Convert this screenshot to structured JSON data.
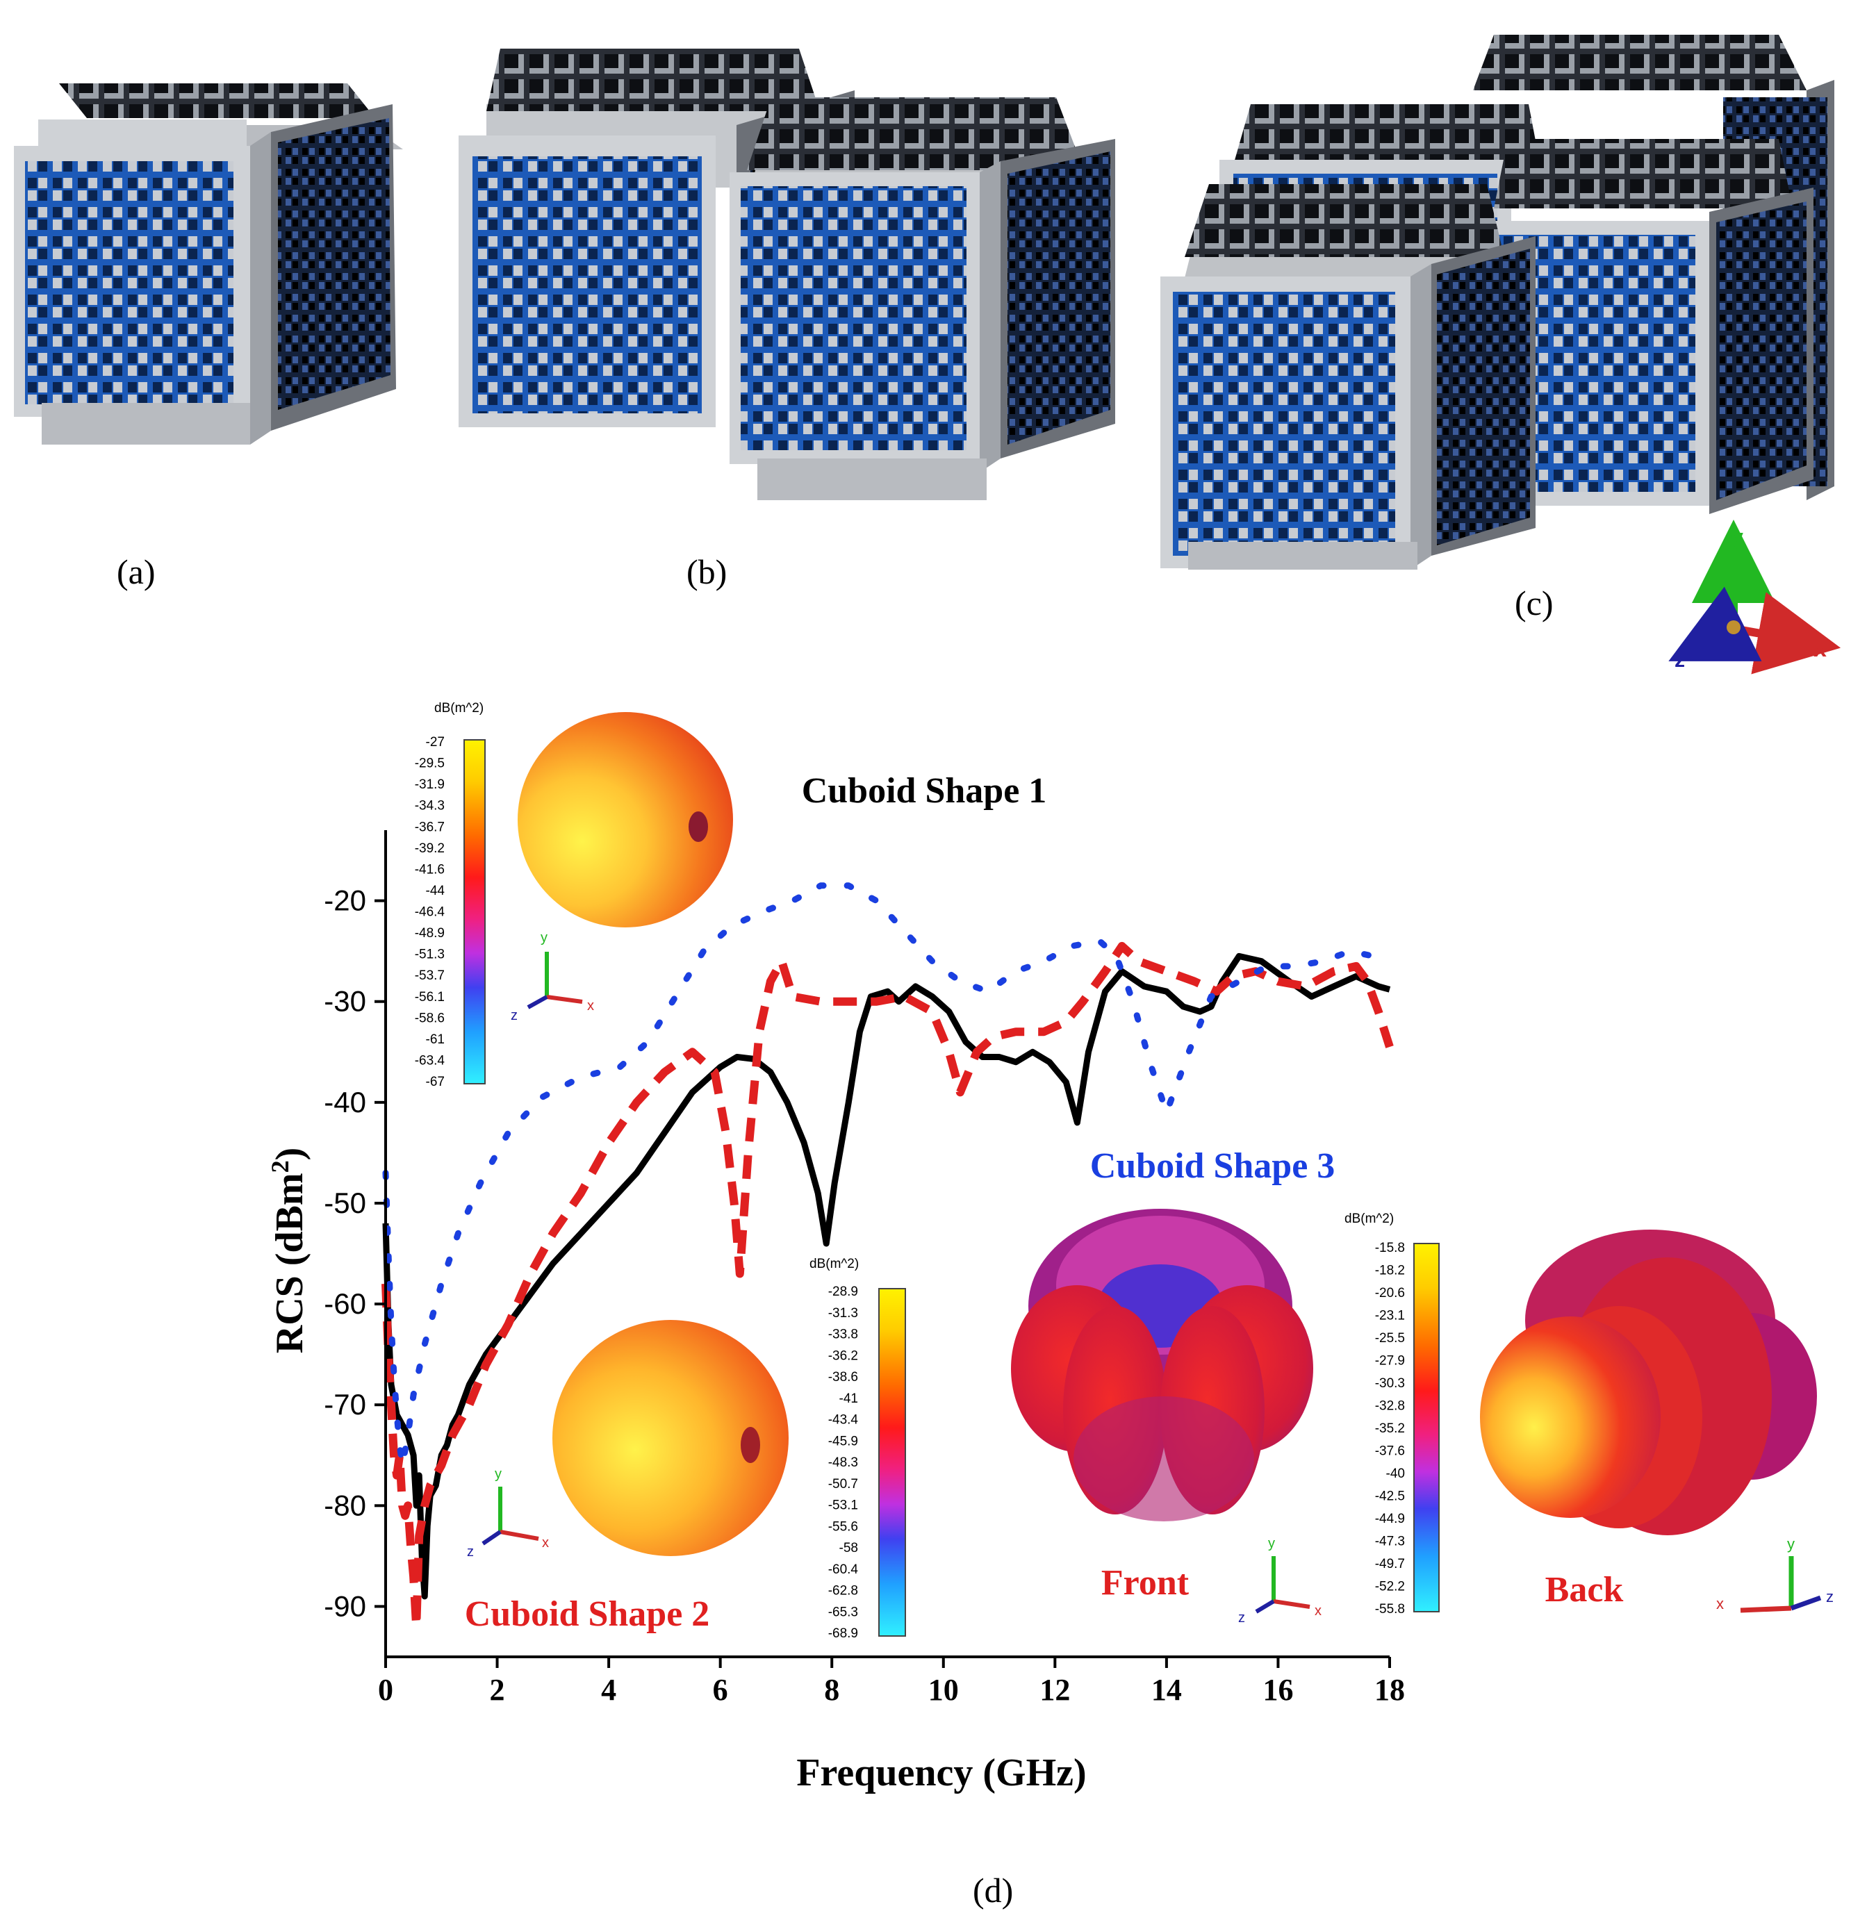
{
  "panels": {
    "a": "(a)",
    "b": "(b)",
    "c": "(c)",
    "d": "(d)"
  },
  "axes_triad": {
    "x": "x",
    "y": "y",
    "z": "z"
  },
  "colorbar_unit_1": "dB(m^2)",
  "colorbar_unit_2": "dB(m^2)",
  "colorbar_unit_3": "dB(m^2)",
  "colorbar1_ticks": [
    "-27",
    "-29.5",
    "-31.9",
    "-34.3",
    "-36.7",
    "-39.2",
    "-41.6",
    "-44",
    "-46.4",
    "-48.9",
    "-51.3",
    "-53.7",
    "-56.1",
    "-58.6",
    "-61",
    "-63.4",
    "-67"
  ],
  "colorbar2_ticks": [
    "-28.9",
    "-31.3",
    "-33.8",
    "-36.2",
    "-38.6",
    "-41",
    "-43.4",
    "-45.9",
    "-48.3",
    "-50.7",
    "-53.1",
    "-55.6",
    "-58",
    "-60.4",
    "-62.8",
    "-65.3",
    "-68.9"
  ],
  "colorbar3_ticks": [
    "-15.8",
    "-18.2",
    "-20.6",
    "-23.1",
    "-25.5",
    "-27.9",
    "-30.3",
    "-32.8",
    "-35.2",
    "-37.6",
    "-40",
    "-42.5",
    "-44.9",
    "-47.3",
    "-49.7",
    "-52.2",
    "-55.8"
  ],
  "labels": {
    "shape1": "Cuboid Shape 1",
    "shape2": "Cuboid Shape 2",
    "shape3": "Cuboid Shape 3",
    "front": "Front",
    "back": "Back"
  },
  "chart_data": {
    "type": "line",
    "xlabel": "Frequency (GHz)",
    "ylabel_main": "RCS (dBm",
    "ylabel_sup": "2",
    "ylabel_end": ")",
    "xlim": [
      0,
      18
    ],
    "ylim": [
      -95,
      -13
    ],
    "xticks": [
      0,
      2,
      4,
      6,
      8,
      10,
      12,
      14,
      16,
      18
    ],
    "yticks": [
      -20,
      -30,
      -40,
      -50,
      -60,
      -70,
      -80,
      -90
    ],
    "series": [
      {
        "name": "Cuboid Shape 1",
        "color": "#000000",
        "style": "solid",
        "points": [
          [
            0,
            -52
          ],
          [
            0.05,
            -62
          ],
          [
            0.1,
            -68
          ],
          [
            0.2,
            -71
          ],
          [
            0.3,
            -72
          ],
          [
            0.4,
            -73
          ],
          [
            0.5,
            -75
          ],
          [
            0.55,
            -80
          ],
          [
            0.6,
            -77
          ],
          [
            0.65,
            -85
          ],
          [
            0.7,
            -89
          ],
          [
            0.75,
            -82
          ],
          [
            0.8,
            -79
          ],
          [
            0.9,
            -78
          ],
          [
            1.0,
            -75
          ],
          [
            1.1,
            -74
          ],
          [
            1.2,
            -72
          ],
          [
            1.3,
            -71
          ],
          [
            1.5,
            -68
          ],
          [
            1.8,
            -65
          ],
          [
            2.2,
            -62
          ],
          [
            2.6,
            -59
          ],
          [
            3.0,
            -56
          ],
          [
            3.5,
            -53
          ],
          [
            4.0,
            -50
          ],
          [
            4.5,
            -47
          ],
          [
            5.0,
            -43
          ],
          [
            5.5,
            -39
          ],
          [
            6.0,
            -36.5
          ],
          [
            6.3,
            -35.5
          ],
          [
            6.6,
            -35.7
          ],
          [
            6.9,
            -37
          ],
          [
            7.2,
            -40
          ],
          [
            7.5,
            -44
          ],
          [
            7.75,
            -49
          ],
          [
            7.9,
            -54
          ],
          [
            8.05,
            -48
          ],
          [
            8.3,
            -40
          ],
          [
            8.5,
            -33
          ],
          [
            8.7,
            -29.5
          ],
          [
            9.0,
            -29
          ],
          [
            9.2,
            -30
          ],
          [
            9.5,
            -28.5
          ],
          [
            9.8,
            -29.5
          ],
          [
            10.1,
            -31
          ],
          [
            10.4,
            -34
          ],
          [
            10.7,
            -35.5
          ],
          [
            11.0,
            -35.5
          ],
          [
            11.3,
            -36
          ],
          [
            11.6,
            -35
          ],
          [
            11.9,
            -36
          ],
          [
            12.2,
            -38
          ],
          [
            12.4,
            -42
          ],
          [
            12.6,
            -35
          ],
          [
            12.9,
            -29
          ],
          [
            13.2,
            -27
          ],
          [
            13.6,
            -28.5
          ],
          [
            14.0,
            -29
          ],
          [
            14.3,
            -30.5
          ],
          [
            14.6,
            -31
          ],
          [
            14.8,
            -30.5
          ],
          [
            15.0,
            -28
          ],
          [
            15.3,
            -25.5
          ],
          [
            15.7,
            -26
          ],
          [
            16.2,
            -28
          ],
          [
            16.6,
            -29.5
          ],
          [
            17.0,
            -28.5
          ],
          [
            17.4,
            -27.5
          ],
          [
            17.8,
            -28.5
          ],
          [
            18,
            -28.8
          ]
        ]
      },
      {
        "name": "Cuboid Shape 2",
        "color": "#e02020",
        "style": "dashed",
        "points": [
          [
            0,
            -58
          ],
          [
            0.05,
            -65
          ],
          [
            0.1,
            -70
          ],
          [
            0.15,
            -75
          ],
          [
            0.2,
            -77
          ],
          [
            0.25,
            -75
          ],
          [
            0.3,
            -80
          ],
          [
            0.35,
            -81
          ],
          [
            0.4,
            -80
          ],
          [
            0.45,
            -84
          ],
          [
            0.5,
            -87
          ],
          [
            0.55,
            -92
          ],
          [
            0.6,
            -83
          ],
          [
            0.7,
            -80
          ],
          [
            0.8,
            -78
          ],
          [
            1.0,
            -76
          ],
          [
            1.2,
            -73
          ],
          [
            1.5,
            -70
          ],
          [
            1.8,
            -66
          ],
          [
            2.2,
            -62
          ],
          [
            2.6,
            -57
          ],
          [
            3.0,
            -53
          ],
          [
            3.5,
            -49
          ],
          [
            4.0,
            -44
          ],
          [
            4.5,
            -40
          ],
          [
            5.0,
            -37
          ],
          [
            5.5,
            -35
          ],
          [
            5.9,
            -37
          ],
          [
            6.1,
            -43
          ],
          [
            6.25,
            -50
          ],
          [
            6.35,
            -57
          ],
          [
            6.5,
            -45
          ],
          [
            6.7,
            -33
          ],
          [
            6.9,
            -28
          ],
          [
            7.1,
            -26
          ],
          [
            7.3,
            -29.5
          ],
          [
            7.8,
            -30
          ],
          [
            8.3,
            -30
          ],
          [
            8.8,
            -30
          ],
          [
            9.3,
            -29.5
          ],
          [
            9.8,
            -31
          ],
          [
            10.1,
            -35
          ],
          [
            10.3,
            -39
          ],
          [
            10.6,
            -35
          ],
          [
            10.9,
            -33.5
          ],
          [
            11.3,
            -33
          ],
          [
            11.8,
            -33
          ],
          [
            12.2,
            -32
          ],
          [
            12.5,
            -30
          ],
          [
            12.9,
            -27
          ],
          [
            13.2,
            -24.5
          ],
          [
            13.5,
            -26
          ],
          [
            14.0,
            -27
          ],
          [
            14.5,
            -28
          ],
          [
            14.9,
            -29
          ],
          [
            15.2,
            -27.5
          ],
          [
            15.6,
            -27
          ],
          [
            16.0,
            -28
          ],
          [
            16.5,
            -28.5
          ],
          [
            17.0,
            -27
          ],
          [
            17.4,
            -26.5
          ],
          [
            17.6,
            -28
          ],
          [
            17.8,
            -31
          ],
          [
            18,
            -34.5
          ]
        ]
      },
      {
        "name": "Cuboid Shape 3",
        "color": "#1a3fe0",
        "style": "dotted",
        "points": [
          [
            0,
            -47
          ],
          [
            0.05,
            -55
          ],
          [
            0.1,
            -62
          ],
          [
            0.15,
            -67
          ],
          [
            0.2,
            -71
          ],
          [
            0.25,
            -74
          ],
          [
            0.3,
            -76
          ],
          [
            0.4,
            -73
          ],
          [
            0.5,
            -69
          ],
          [
            0.7,
            -64
          ],
          [
            1.0,
            -58
          ],
          [
            1.3,
            -53
          ],
          [
            1.7,
            -48
          ],
          [
            2.2,
            -43
          ],
          [
            2.8,
            -39.5
          ],
          [
            3.5,
            -37.5
          ],
          [
            4.2,
            -36.5
          ],
          [
            4.7,
            -34
          ],
          [
            5.2,
            -29.5
          ],
          [
            5.7,
            -25
          ],
          [
            6.2,
            -22.5
          ],
          [
            6.8,
            -21
          ],
          [
            7.3,
            -20
          ],
          [
            7.8,
            -18.5
          ],
          [
            8.3,
            -18.5
          ],
          [
            8.8,
            -20
          ],
          [
            9.3,
            -23
          ],
          [
            9.8,
            -26
          ],
          [
            10.3,
            -28
          ],
          [
            10.8,
            -29
          ],
          [
            11.3,
            -27
          ],
          [
            11.8,
            -26
          ],
          [
            12.3,
            -24.5
          ],
          [
            12.8,
            -24
          ],
          [
            13.1,
            -25.5
          ],
          [
            13.4,
            -30
          ],
          [
            13.7,
            -36
          ],
          [
            14.0,
            -41
          ],
          [
            14.4,
            -35
          ],
          [
            14.8,
            -29.5
          ],
          [
            15.3,
            -28
          ],
          [
            15.8,
            -26.5
          ],
          [
            16.3,
            -26.5
          ],
          [
            16.8,
            -26
          ],
          [
            17.3,
            -25
          ],
          [
            17.7,
            -25.5
          ],
          [
            18,
            -25.5
          ]
        ]
      }
    ]
  }
}
